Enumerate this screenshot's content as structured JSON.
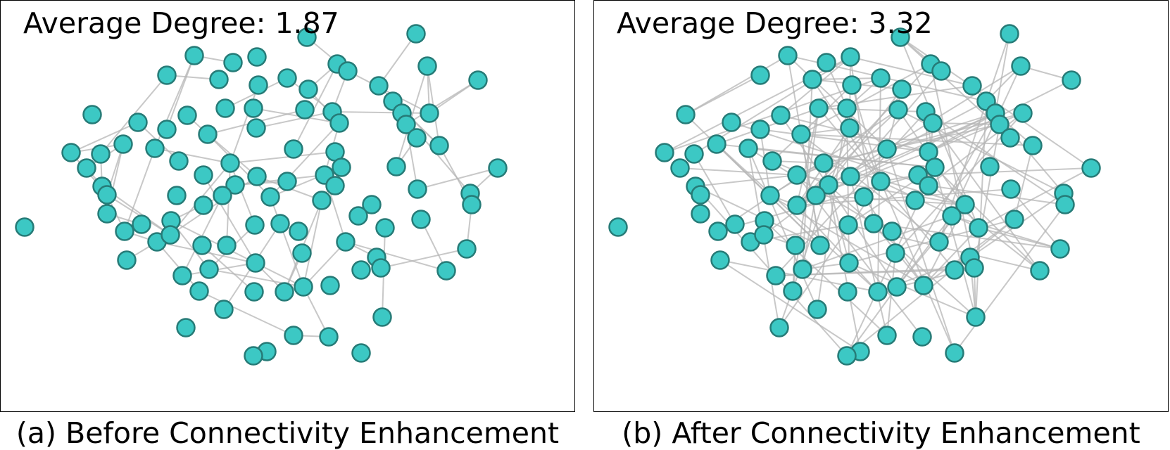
{
  "figure": {
    "panels": [
      {
        "id": "a",
        "degree_text": "Average Degree: 1.87",
        "caption": "(a) Before Connectivity Enhancement",
        "node_color": "#3cc8c4",
        "node_edge_color": "#267b77",
        "edge_color": "#b5b5b5",
        "average_degree": 1.87
      },
      {
        "id": "b",
        "degree_text": "Average Degree: 3.32",
        "caption": "(b) After Connectivity Enhancement",
        "node_color": "#3cc8c4",
        "node_edge_color": "#267b77",
        "edge_color": "#b5b5b5",
        "average_degree": 3.32
      }
    ]
  }
}
